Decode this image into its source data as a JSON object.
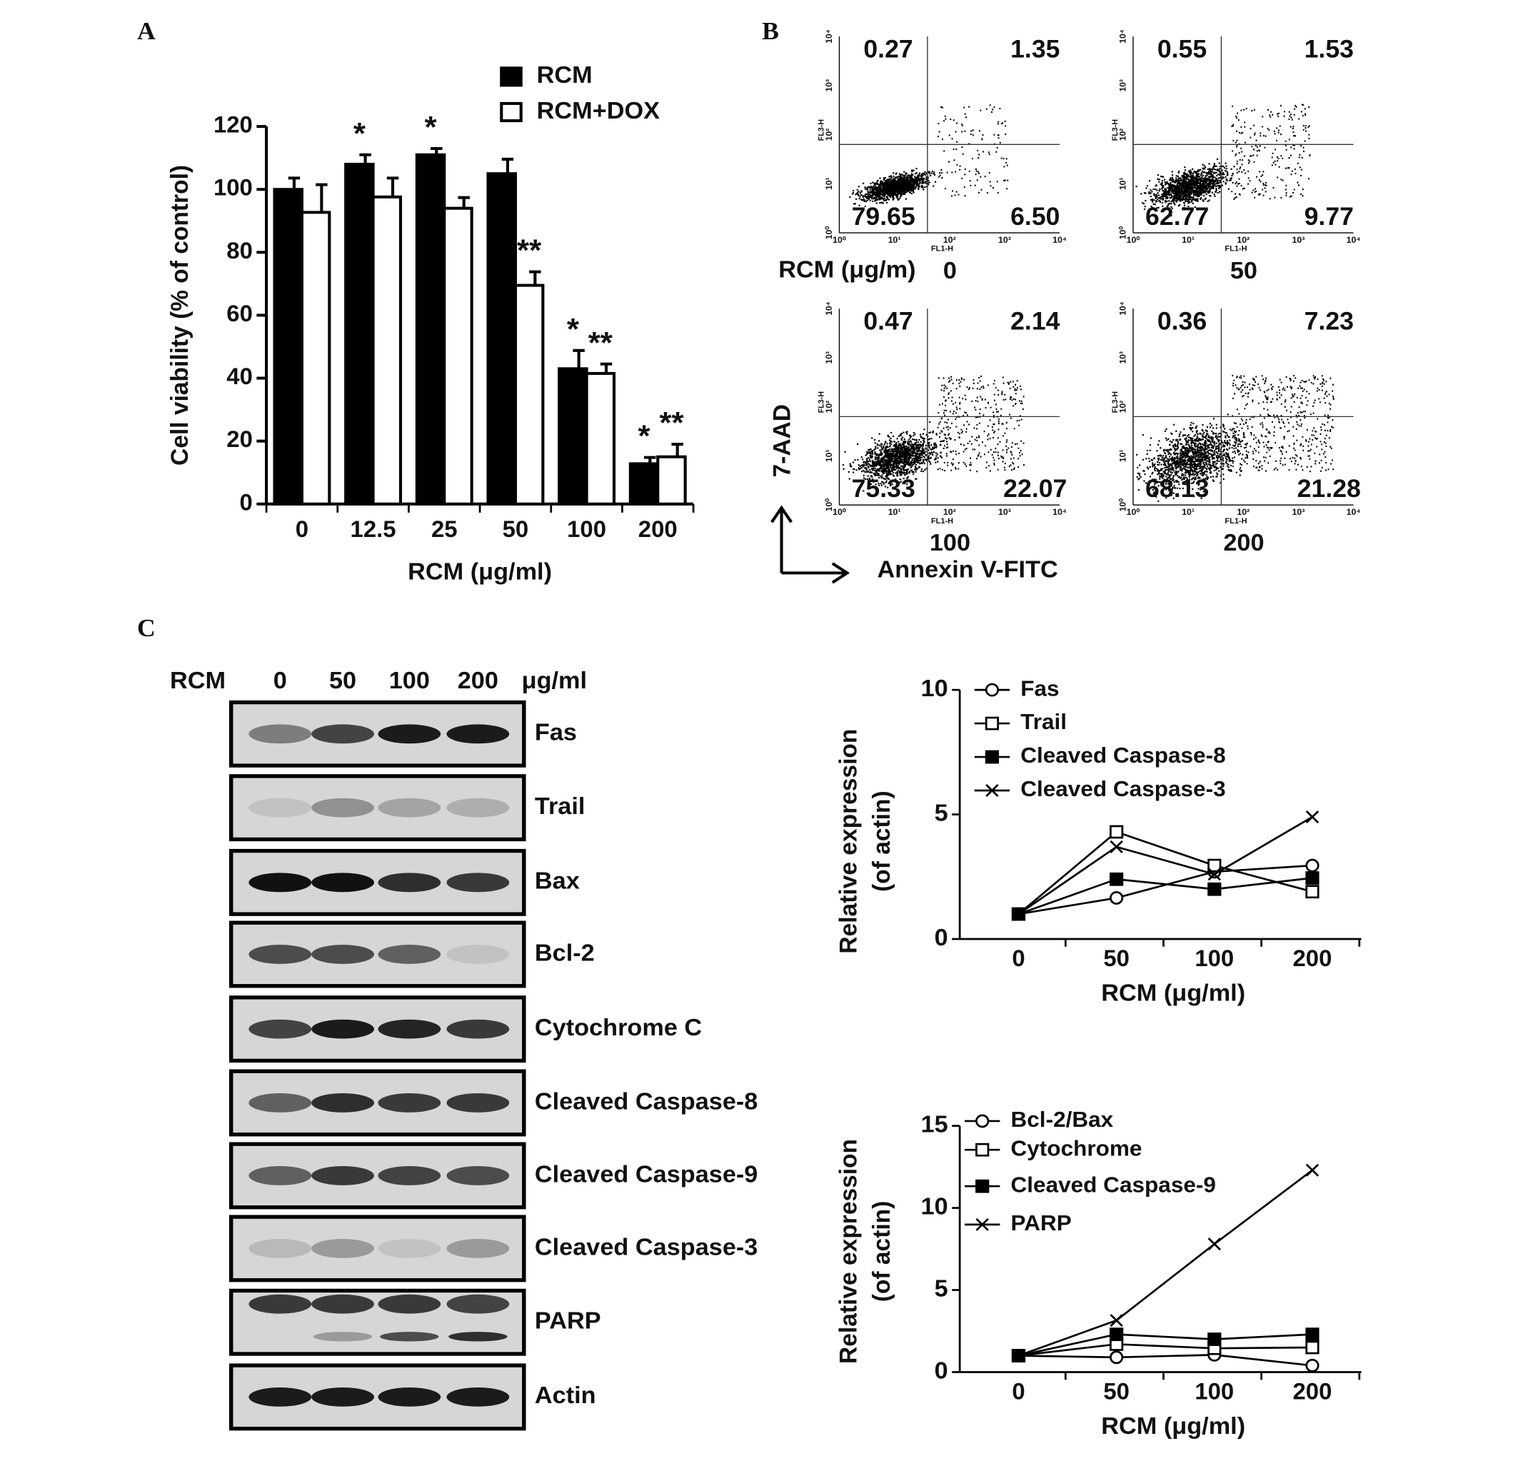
{
  "panel_labels": [
    "A",
    "B",
    "C"
  ],
  "chart_data": [
    {
      "type": "bar",
      "categories": [
        "0",
        "12.5",
        "25",
        "50",
        "100",
        "200"
      ],
      "series": [
        {
          "name": "RCM",
          "color": "#000000",
          "values": [
            100,
            108,
            111,
            105,
            43,
            12.8
          ],
          "errors": [
            3.6,
            3,
            2,
            4.6,
            5.8,
            2
          ]
        },
        {
          "name": "RCM+DOX",
          "color": "#ffffff",
          "values": [
            92.7,
            97.6,
            94,
            69.5,
            41.5,
            15
          ],
          "errors": [
            8.8,
            6,
            3.4,
            4.3,
            3,
            4
          ]
        }
      ],
      "ylim": [
        0,
        120
      ],
      "yticks": [
        0,
        20,
        40,
        60,
        80,
        100,
        120
      ],
      "ylabel": "Cell viability (% of control)",
      "xlabel": "RCM (μg/ml)",
      "annotations": [
        {
          "text": "*",
          "series": 0,
          "index": 1
        },
        {
          "text": "*",
          "series": 0,
          "index": 2
        },
        {
          "text": "*",
          "series": 0,
          "index": 4
        },
        {
          "text": "*",
          "series": 0,
          "index": 5
        },
        {
          "text": "**",
          "series": 1,
          "index": 3
        },
        {
          "text": "**",
          "series": 1,
          "index": 4
        },
        {
          "text": "**",
          "series": 1,
          "index": 5
        }
      ]
    },
    {
      "type": "line",
      "categories": [
        "0",
        "50",
        "100",
        "200"
      ],
      "series": [
        {
          "name": "Fas",
          "marker": "circle-open",
          "values": [
            1,
            1.65,
            2.7,
            2.95
          ]
        },
        {
          "name": "Trail",
          "marker": "square-open",
          "values": [
            1,
            4.3,
            2.95,
            1.9
          ]
        },
        {
          "name": "Cleaved Caspase-8",
          "marker": "square-filled",
          "values": [
            1,
            2.4,
            2,
            2.45
          ]
        },
        {
          "name": "Cleaved Caspase-3",
          "marker": "cross",
          "values": [
            1,
            3.7,
            2.6,
            4.9
          ]
        }
      ],
      "ylim": [
        0,
        10
      ],
      "yticks": [
        0,
        5,
        10
      ],
      "ylabel": [
        "Relative expression",
        "(of actin)"
      ],
      "xlabel": "RCM (μg/ml)"
    },
    {
      "type": "line",
      "categories": [
        "0",
        "50",
        "100",
        "200"
      ],
      "series": [
        {
          "name": "Bcl-2/Bax",
          "marker": "circle-open",
          "values": [
            1,
            0.9,
            1.05,
            0.4
          ]
        },
        {
          "name": "Cytochrome",
          "marker": "square-open",
          "values": [
            1,
            1.7,
            1.45,
            1.5
          ]
        },
        {
          "name": "Cleaved Caspase-9",
          "marker": "square-filled",
          "values": [
            1,
            2.3,
            2,
            2.3
          ]
        },
        {
          "name": "PARP",
          "marker": "cross",
          "values": [
            1,
            3.15,
            7.8,
            12.3
          ]
        }
      ],
      "ylim": [
        0,
        15
      ],
      "yticks": [
        0,
        5,
        10,
        15
      ],
      "ylabel": [
        "Relative expression",
        "(of actin)"
      ],
      "xlabel": "RCM (μg/ml)"
    }
  ],
  "flow_cytometry": {
    "dose_label": "RCM (μg/m)",
    "y_label": "7-AAD",
    "x_label": "Annexin V-FITC",
    "x_axis": "FL1-H",
    "y_axis": "FL3-H",
    "axis_ticks": [
      "10⁰",
      "10¹",
      "10²",
      "10³",
      "10⁴"
    ],
    "panels": [
      {
        "dose": "0",
        "upper_left": "0.27",
        "upper_right": "1.35",
        "lower_left": "79.65",
        "lower_right": "6.50"
      },
      {
        "dose": "50",
        "upper_left": "0.55",
        "upper_right": "1.53",
        "lower_left": "62.77",
        "lower_right": "9.77"
      },
      {
        "dose": "100",
        "upper_left": "0.47",
        "upper_right": "2.14",
        "lower_left": "75.33",
        "lower_right": "22.07"
      },
      {
        "dose": "200",
        "upper_left": "0.36",
        "upper_right": "7.23",
        "lower_left": "68.13",
        "lower_right": "21.28"
      }
    ]
  },
  "western_blot": {
    "treatment": "RCM",
    "doses": [
      "0",
      "50",
      "100",
      "200"
    ],
    "unit": "μg/ml",
    "proteins": [
      "Fas",
      "Trail",
      "Bax",
      "Bcl-2",
      "Cytochrome C",
      "Cleaved Caspase-8",
      "Cleaved Caspase-9",
      "Cleaved Caspase-3",
      "PARP",
      "Actin"
    ]
  }
}
